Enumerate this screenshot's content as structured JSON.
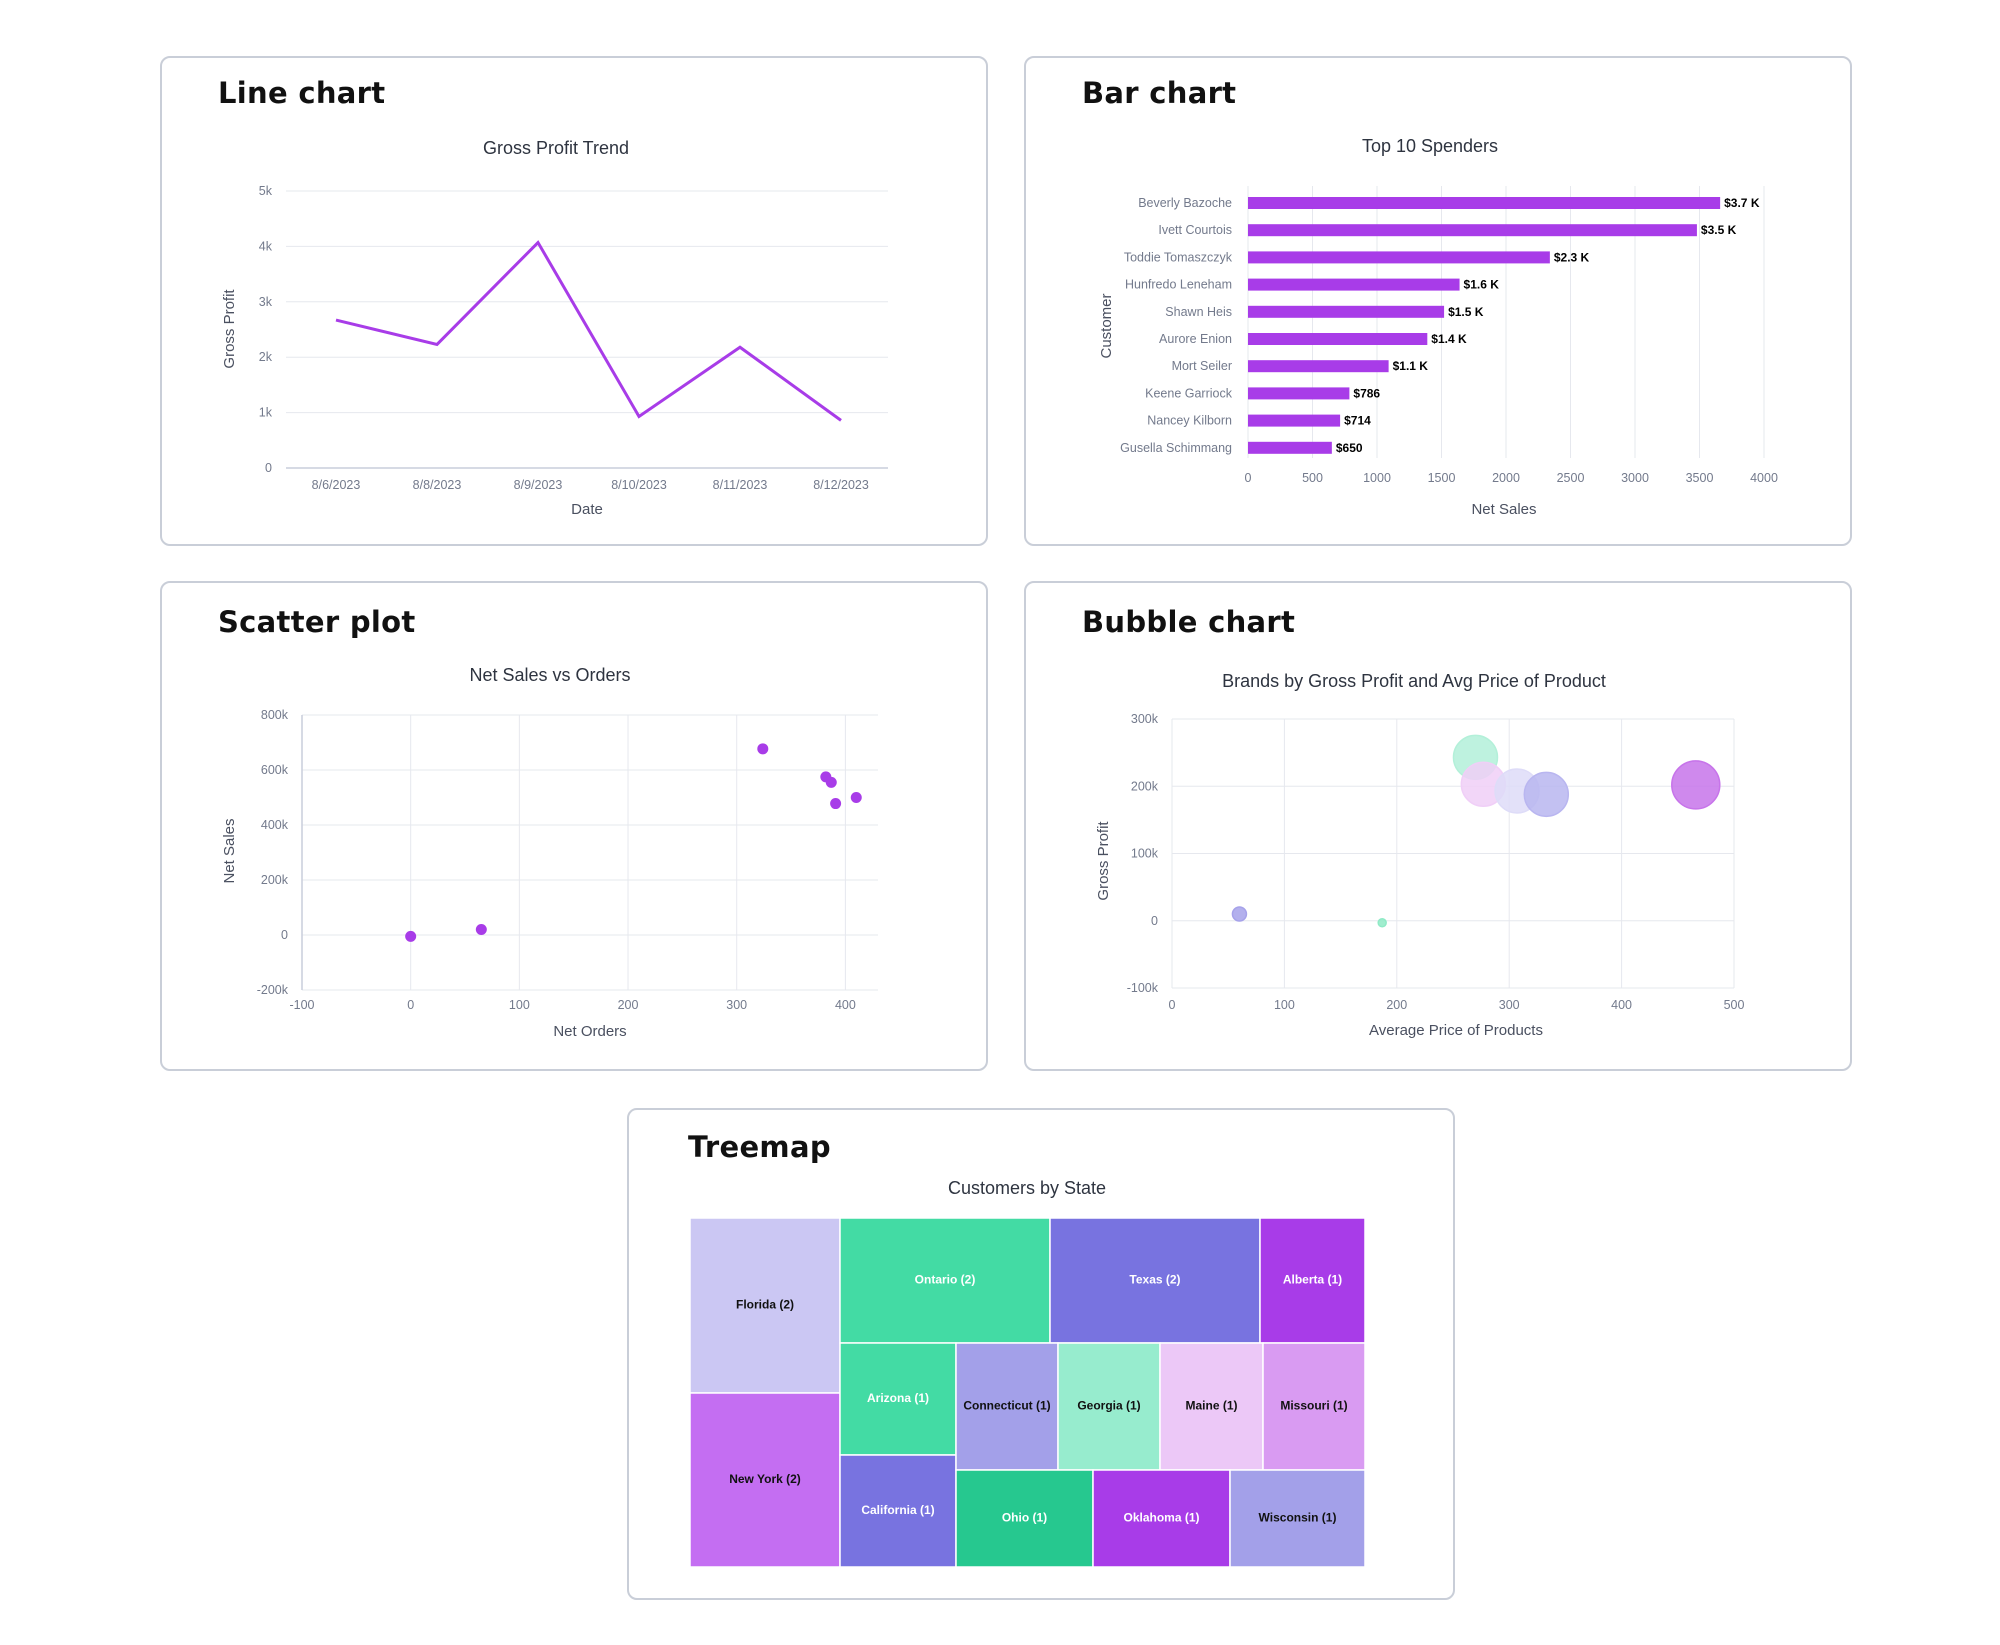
{
  "cards": {
    "line": "Line chart",
    "bar": "Bar chart",
    "scatter": "Scatter plot",
    "bubble": "Bubble chart",
    "treemap": "Treemap"
  },
  "colors": {
    "purple": "#a83ce8",
    "teal": "#43dba4",
    "indigo": "#7873e0",
    "lavender": "#cbc7f3"
  },
  "chart_data": [
    {
      "id": "line",
      "type": "line",
      "title": "Gross Profit Trend",
      "xlabel": "Date",
      "ylabel": "Gross Profit",
      "categories": [
        "8/6/2023",
        "8/8/2023",
        "8/9/2023",
        "8/10/2023",
        "8/11/2023",
        "8/12/2023"
      ],
      "values": [
        2670,
        2230,
        4070,
        930,
        2180,
        860
      ],
      "ylim": [
        0,
        5000
      ],
      "yticks": [
        0,
        1000,
        2000,
        3000,
        4000,
        5000
      ],
      "ytick_labels": [
        "0",
        "1k",
        "2k",
        "3k",
        "4k",
        "5k"
      ],
      "grid": true
    },
    {
      "id": "bar",
      "type": "bar",
      "orientation": "horizontal",
      "title": "Top 10 Spenders",
      "xlabel": "Net Sales",
      "ylabel": "Customer",
      "categories": [
        "Beverly Bazoche",
        "Ivett Courtois",
        "Toddie Tomaszczyk",
        "Hunfredo Leneham",
        "Shawn Heis",
        "Aurore Enion",
        "Mort Seiler",
        "Keene Garriock",
        "Nancey Kilborn",
        "Gusella Schimmang"
      ],
      "values": [
        3660,
        3480,
        2340,
        1640,
        1520,
        1390,
        1090,
        786,
        714,
        650
      ],
      "data_labels": [
        "$3.7 K",
        "$3.5 K",
        "$2.3 K",
        "$1.6 K",
        "$1.5 K",
        "$1.4 K",
        "$1.1 K",
        "$786",
        "$714",
        "$650"
      ],
      "xlim": [
        0,
        4000
      ],
      "xticks": [
        0,
        500,
        1000,
        1500,
        2000,
        2500,
        3000,
        3500,
        4000
      ],
      "grid": true
    },
    {
      "id": "scatter",
      "type": "scatter",
      "title": "Net Sales vs Orders",
      "xlabel": "Net Orders",
      "ylabel": "Net Sales",
      "points": [
        {
          "x": 0,
          "y": -5000
        },
        {
          "x": 65,
          "y": 20000
        },
        {
          "x": 324,
          "y": 677000
        },
        {
          "x": 382,
          "y": 575000
        },
        {
          "x": 387,
          "y": 555000
        },
        {
          "x": 391,
          "y": 478000
        },
        {
          "x": 410,
          "y": 500000
        }
      ],
      "xlim": [
        -100,
        430
      ],
      "ylim": [
        -200000,
        800000
      ],
      "xticks": [
        -100,
        0,
        100,
        200,
        300,
        400
      ],
      "xtick_labels": [
        "-100",
        "0",
        "100",
        "200",
        "300",
        "400"
      ],
      "yticks": [
        -200000,
        0,
        200000,
        400000,
        600000,
        800000
      ],
      "ytick_labels": [
        "-200k",
        "0",
        "200k",
        "400k",
        "600k",
        "800k"
      ],
      "grid": true
    },
    {
      "id": "bubble",
      "type": "scatter",
      "subtype": "bubble",
      "title": "Brands by Gross Profit and Avg Price of Product",
      "xlabel": "Average Price of Products",
      "ylabel": "Gross Profit",
      "points": [
        {
          "x": 60,
          "y": 10000,
          "size": 7,
          "color": "#a6a2ea"
        },
        {
          "x": 187,
          "y": -3000,
          "size": 4,
          "color": "#8feac6"
        },
        {
          "x": 270,
          "y": 243000,
          "size": 22,
          "color": "#b3f0d9"
        },
        {
          "x": 277,
          "y": 203000,
          "size": 22,
          "color": "#f0cff7"
        },
        {
          "x": 307,
          "y": 193000,
          "size": 22,
          "color": "#dedcf8"
        },
        {
          "x": 333,
          "y": 188000,
          "size": 22,
          "color": "#b9b6f0"
        },
        {
          "x": 466,
          "y": 202000,
          "size": 24,
          "color": "#c774ea"
        }
      ],
      "xlim": [
        0,
        500
      ],
      "ylim": [
        -100000,
        300000
      ],
      "xticks": [
        0,
        100,
        200,
        300,
        400,
        500
      ],
      "yticks": [
        -100000,
        0,
        100000,
        200000,
        300000
      ],
      "ytick_labels": [
        "-100k",
        "0",
        "100k",
        "200k",
        "300k"
      ],
      "grid": true
    },
    {
      "id": "treemap",
      "type": "treemap",
      "title": "Customers by State",
      "items": [
        {
          "label": "Florida (2)",
          "value": 2,
          "color": "#cbc7f3",
          "text_color": "#111111"
        },
        {
          "label": "New York (2)",
          "value": 2,
          "color": "#c46ef2",
          "text_color": "#111111"
        },
        {
          "label": "Ontario (2)",
          "value": 2,
          "color": "#43dba4",
          "text_color": "#ffffff"
        },
        {
          "label": "Texas (2)",
          "value": 2,
          "color": "#7873e0",
          "text_color": "#ffffff"
        },
        {
          "label": "Alberta (1)",
          "value": 1,
          "color": "#a83ce8",
          "text_color": "#ffffff"
        },
        {
          "label": "Arizona (1)",
          "value": 1,
          "color": "#43dba4",
          "text_color": "#ffffff"
        },
        {
          "label": "California (1)",
          "value": 1,
          "color": "#7873e0",
          "text_color": "#ffffff"
        },
        {
          "label": "Connecticut (1)",
          "value": 1,
          "color": "#a3a0e9",
          "text_color": "#111111"
        },
        {
          "label": "Georgia (1)",
          "value": 1,
          "color": "#97ecce",
          "text_color": "#111111"
        },
        {
          "label": "Maine (1)",
          "value": 1,
          "color": "#ecc8f7",
          "text_color": "#111111"
        },
        {
          "label": "Missouri (1)",
          "value": 1,
          "color": "#d99bf2",
          "text_color": "#111111"
        },
        {
          "label": "Ohio (1)",
          "value": 1,
          "color": "#26c88f",
          "text_color": "#ffffff"
        },
        {
          "label": "Oklahoma (1)",
          "value": 1,
          "color": "#a83ce8",
          "text_color": "#ffffff"
        },
        {
          "label": "Wisconsin (1)",
          "value": 1,
          "color": "#a3a0e9",
          "text_color": "#111111"
        }
      ]
    }
  ]
}
